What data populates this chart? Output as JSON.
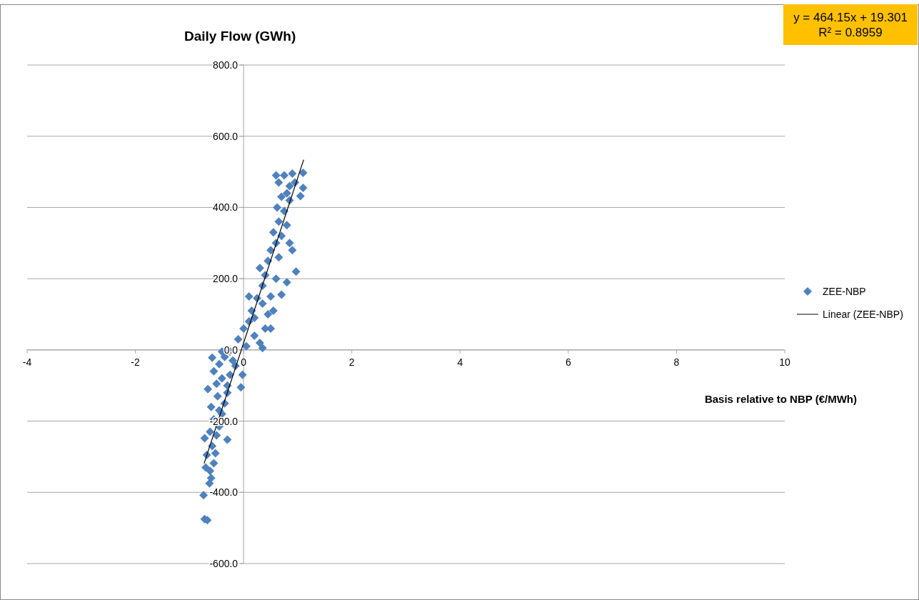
{
  "chart_data": {
    "type": "scatter",
    "xlabel": "Basis relative to NBP (€/MWh)",
    "ylabel": "Daily Flow (GWh)",
    "annotations": [
      "y = 464.15x + 19.301",
      "R² = 0.8959"
    ],
    "xlim": [
      -4,
      10
    ],
    "xticks": [
      -4,
      -2,
      0,
      2,
      4,
      6,
      8,
      10
    ],
    "ylim": [
      -600,
      800
    ],
    "yticks": [
      {
        "value": -600,
        "label": "-600.0"
      },
      {
        "value": -400,
        "label": "-400.0"
      },
      {
        "value": -200,
        "label": "-200.0"
      },
      {
        "value": 0,
        "label": "0.0"
      },
      {
        "value": 200,
        "label": "200.0"
      },
      {
        "value": 400,
        "label": "400.0"
      },
      {
        "value": 600,
        "label": "600.0"
      },
      {
        "value": 800,
        "label": "800.0"
      }
    ],
    "grid": "y",
    "legend": "right",
    "marker": "diamond",
    "series": [
      {
        "name": "ZEE-NBP",
        "color": "#4f81bd",
        "x": [
          -0.72,
          -0.67,
          -0.74,
          -0.63,
          -0.6,
          -0.7,
          -0.55,
          -0.68,
          -0.72,
          -0.3,
          -0.58,
          -0.5,
          -0.62,
          -0.45,
          -0.55,
          -0.4,
          -0.6,
          -0.35,
          -0.48,
          -0.66,
          -0.3,
          -0.5,
          -0.4,
          -0.55,
          -0.25,
          -0.45,
          -0.58,
          -0.35,
          -0.25,
          -0.05,
          -0.02,
          -0.15,
          -0.4,
          -0.2,
          -0.3,
          -0.45,
          -0.52,
          -0.62,
          -0.1,
          0.0,
          0.05,
          0.1,
          0.15,
          0.2,
          0.3,
          0.35,
          0.25,
          0.4,
          0.45,
          0.35,
          0.5,
          0.55,
          0.3,
          0.45,
          0.6,
          0.7,
          0.5,
          0.6,
          0.55,
          0.7,
          0.65,
          0.8,
          0.62,
          0.75,
          0.85,
          0.7,
          0.85,
          0.65,
          0.75,
          0.9,
          1.1,
          1.1,
          1.05,
          0.95,
          0.97,
          0.8,
          0.9,
          0.6,
          0.85,
          0.4,
          0.2,
          0.1,
          0.5,
          0.35,
          0.65,
          0.8
        ],
        "values": [
          -475,
          -478,
          -408,
          -375,
          -360,
          -330,
          -318,
          -295,
          -248,
          -252,
          -270,
          -240,
          -230,
          -215,
          -195,
          -180,
          -160,
          -150,
          -130,
          -110,
          -120,
          -95,
          -80,
          -60,
          -70,
          -40,
          -22,
          -20,
          -5,
          -105,
          -70,
          -45,
          -5,
          -30,
          -100,
          -170,
          -290,
          -340,
          30,
          60,
          10,
          80,
          110,
          40,
          20,
          5,
          145,
          60,
          100,
          180,
          150,
          110,
          230,
          250,
          200,
          155,
          280,
          300,
          330,
          320,
          360,
          350,
          400,
          390,
          300,
          430,
          420,
          470,
          490,
          495,
          497,
          455,
          432,
          470,
          220,
          190,
          280,
          490,
          460,
          210,
          90,
          150,
          60,
          130,
          260,
          440
        ]
      },
      {
        "name": "Linear (ZEE-NBP)",
        "type": "line",
        "color": "#000000",
        "marker": "none",
        "line_style": "solid",
        "x": [
          -0.73,
          1.11
        ],
        "values": [
          -319,
          534
        ]
      }
    ]
  }
}
